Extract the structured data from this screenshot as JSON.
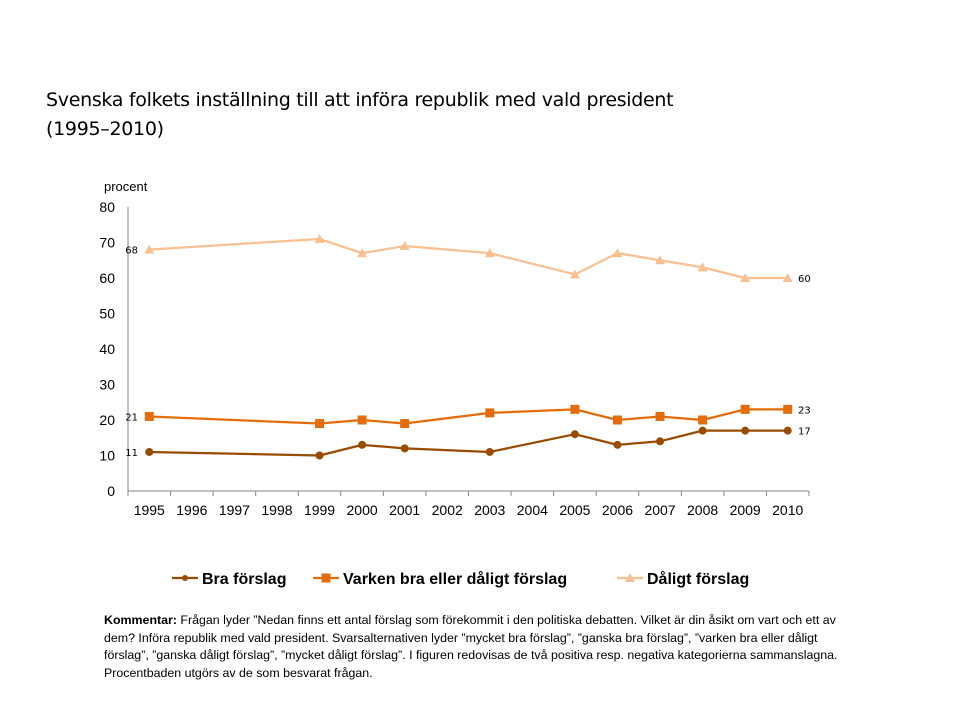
{
  "title_line1": "Svenska folkets inställning till att införa republik med vald president",
  "title_line2": "(1995–2010)",
  "comment": {
    "label": "Kommentar:",
    "text": " Frågan lyder ”Nedan finns ett antal förslag som förekommit  i den politiska debatten. Vilket är din åsikt om vart och ett av dem? Införa republik med vald president. Svarsalternativen lyder ”mycket bra förslag”, ”ganska bra förslag”, ”varken bra eller dåligt förslag”, ”ganska dåligt förslag”, ”mycket dåligt förslag”. I figuren redovisas de två positiva resp. negativa kategorierna sammanslagna. Procentbaden  utgörs av de som besvarat frågan."
  },
  "chart_data": {
    "type": "line",
    "title": "Svenska folkets inställning till att införa republik med vald president (1995–2010)",
    "xlabel": "",
    "ylabel": "procent",
    "ylim": [
      0,
      80
    ],
    "yticks": [
      0,
      10,
      20,
      30,
      40,
      50,
      60,
      70,
      80
    ],
    "grid": false,
    "legend_position": "bottom",
    "categories": [
      "1995",
      "1996",
      "1997",
      "1998",
      "1999",
      "2000",
      "2001",
      "2002",
      "2003",
      "2004",
      "2005",
      "2006",
      "2007",
      "2008",
      "2009",
      "2010"
    ],
    "series": [
      {
        "name": "Bra förslag",
        "color": "#994C00",
        "marker": "circle",
        "values": [
          11,
          null,
          null,
          null,
          10,
          13,
          12,
          null,
          11,
          null,
          16,
          13,
          14,
          17,
          17,
          17
        ],
        "labels": {
          "first": "11",
          "last": "17"
        }
      },
      {
        "name": "Varken bra eller dåligt förslag",
        "color": "#E46C0A",
        "marker": "square",
        "values": [
          21,
          null,
          null,
          null,
          19,
          20,
          19,
          null,
          22,
          null,
          23,
          20,
          21,
          20,
          23,
          23
        ],
        "labels": {
          "first": "21",
          "last": "23"
        }
      },
      {
        "name": "Dåligt förslag",
        "color": "#FAC090",
        "marker": "triangle",
        "values": [
          68,
          null,
          null,
          null,
          71,
          67,
          69,
          null,
          67,
          null,
          61,
          67,
          65,
          63,
          60,
          60
        ],
        "labels": {
          "first": "68",
          "last": "60"
        }
      }
    ]
  }
}
